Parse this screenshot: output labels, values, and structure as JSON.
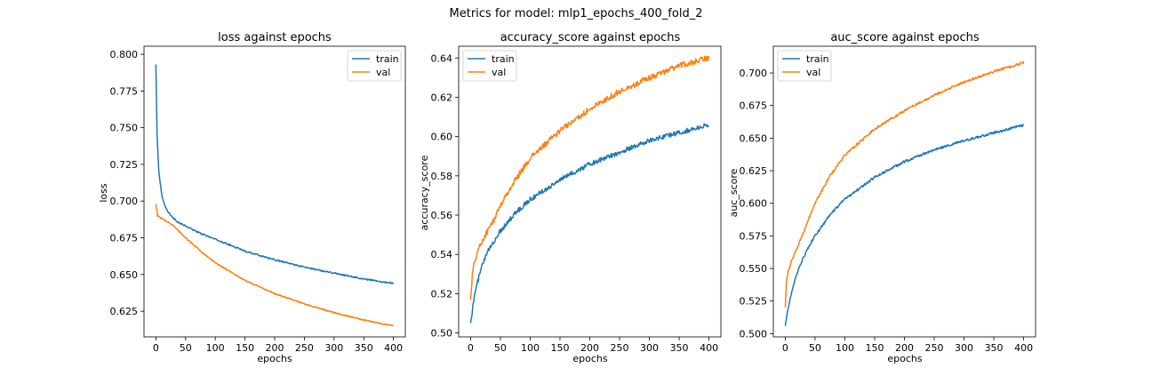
{
  "figure": {
    "suptitle": "Metrics for model: mlp1_epochs_400_fold_2"
  },
  "chart_data": [
    {
      "type": "line",
      "title": "loss against epochs",
      "xlabel": "epochs",
      "ylabel": "loss",
      "xlim": [
        -20,
        420
      ],
      "ylim": [
        0.6075,
        0.8055
      ],
      "xticks": [
        0,
        50,
        100,
        150,
        200,
        250,
        300,
        350,
        400
      ],
      "yticks": [
        0.625,
        0.65,
        0.675,
        0.7,
        0.725,
        0.75,
        0.775,
        0.8
      ],
      "ytick_labels": [
        "0.625",
        "0.650",
        "0.675",
        "0.700",
        "0.725",
        "0.750",
        "0.775",
        "0.800"
      ],
      "legend": "upper right",
      "grid": false,
      "series": [
        {
          "name": "train",
          "color": "#1f77b4",
          "x": [
            0,
            2,
            5,
            10,
            15,
            20,
            30,
            40,
            50,
            75,
            100,
            150,
            200,
            250,
            300,
            350,
            400
          ],
          "y": [
            0.793,
            0.745,
            0.72,
            0.704,
            0.697,
            0.693,
            0.688,
            0.685,
            0.683,
            0.678,
            0.674,
            0.666,
            0.66,
            0.655,
            0.651,
            0.647,
            0.644
          ],
          "noise": 0.0005
        },
        {
          "name": "val",
          "color": "#ff7f0e",
          "x": [
            0,
            3,
            10,
            20,
            30,
            40,
            50,
            75,
            100,
            150,
            200,
            250,
            300,
            350,
            400
          ],
          "y": [
            0.698,
            0.69,
            0.688,
            0.686,
            0.683,
            0.679,
            0.675,
            0.666,
            0.658,
            0.646,
            0.637,
            0.63,
            0.624,
            0.619,
            0.615
          ],
          "noise": 0.0004
        }
      ]
    },
    {
      "type": "line",
      "title": "accuracy_score against epochs",
      "xlabel": "epochs",
      "ylabel": "accuracy_score",
      "xlim": [
        -20,
        420
      ],
      "ylim": [
        0.498,
        0.646
      ],
      "xticks": [
        0,
        50,
        100,
        150,
        200,
        250,
        300,
        350,
        400
      ],
      "yticks": [
        0.5,
        0.52,
        0.54,
        0.56,
        0.58,
        0.6,
        0.62,
        0.64
      ],
      "ytick_labels": [
        "0.50",
        "0.52",
        "0.54",
        "0.56",
        "0.58",
        "0.60",
        "0.62",
        "0.64"
      ],
      "legend": "upper left",
      "grid": false,
      "series": [
        {
          "name": "train",
          "color": "#1f77b4",
          "x": [
            0,
            5,
            10,
            20,
            30,
            40,
            50,
            75,
            100,
            150,
            200,
            250,
            300,
            350,
            400
          ],
          "y": [
            0.505,
            0.516,
            0.524,
            0.535,
            0.542,
            0.547,
            0.552,
            0.561,
            0.568,
            0.578,
            0.586,
            0.592,
            0.598,
            0.602,
            0.606
          ],
          "noise": 0.0012
        },
        {
          "name": "val",
          "color": "#ff7f0e",
          "x": [
            0,
            3,
            8,
            15,
            25,
            40,
            50,
            75,
            100,
            150,
            200,
            250,
            300,
            350,
            400
          ],
          "y": [
            0.517,
            0.53,
            0.538,
            0.544,
            0.55,
            0.558,
            0.565,
            0.578,
            0.589,
            0.603,
            0.614,
            0.623,
            0.63,
            0.636,
            0.64
          ],
          "noise": 0.0015
        }
      ]
    },
    {
      "type": "line",
      "title": "auc_score against epochs",
      "xlabel": "epochs",
      "ylabel": "auc_score",
      "xlim": [
        -20,
        420
      ],
      "ylim": [
        0.4975,
        0.7205
      ],
      "xticks": [
        0,
        50,
        100,
        150,
        200,
        250,
        300,
        350,
        400
      ],
      "yticks": [
        0.5,
        0.525,
        0.55,
        0.575,
        0.6,
        0.625,
        0.65,
        0.675,
        0.7
      ],
      "ytick_labels": [
        "0.500",
        "0.525",
        "0.550",
        "0.575",
        "0.600",
        "0.625",
        "0.650",
        "0.675",
        "0.700"
      ],
      "legend": "upper left",
      "grid": false,
      "series": [
        {
          "name": "train",
          "color": "#1f77b4",
          "x": [
            0,
            5,
            10,
            20,
            30,
            40,
            50,
            75,
            100,
            150,
            200,
            250,
            300,
            350,
            400
          ],
          "y": [
            0.506,
            0.52,
            0.53,
            0.547,
            0.558,
            0.567,
            0.575,
            0.591,
            0.603,
            0.62,
            0.632,
            0.641,
            0.648,
            0.654,
            0.66
          ],
          "noise": 0.0009
        },
        {
          "name": "val",
          "color": "#ff7f0e",
          "x": [
            0,
            2,
            5,
            10,
            20,
            30,
            40,
            50,
            75,
            100,
            150,
            200,
            250,
            300,
            350,
            400
          ],
          "y": [
            0.52,
            0.54,
            0.548,
            0.555,
            0.566,
            0.577,
            0.589,
            0.6,
            0.621,
            0.637,
            0.657,
            0.671,
            0.683,
            0.693,
            0.701,
            0.708
          ],
          "noise": 0.0009
        }
      ]
    }
  ]
}
